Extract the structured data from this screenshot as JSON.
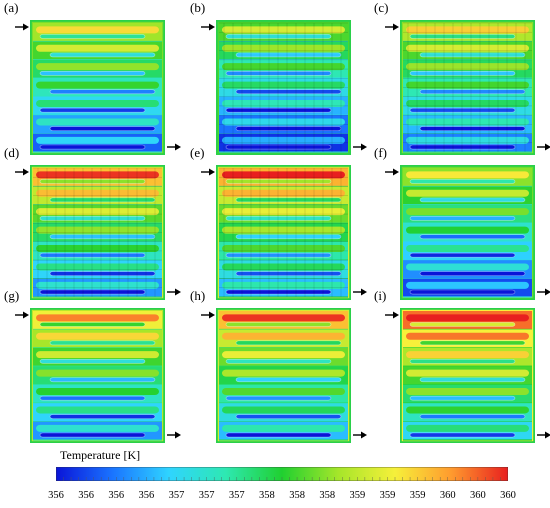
{
  "panels": [
    {
      "label": "(a)",
      "variant": "a"
    },
    {
      "label": "(b)",
      "variant": "b"
    },
    {
      "label": "(c)",
      "variant": "c"
    },
    {
      "label": "(d)",
      "variant": "d"
    },
    {
      "label": "(e)",
      "variant": "e"
    },
    {
      "label": "(f)",
      "variant": "f"
    },
    {
      "label": "(g)",
      "variant": "g"
    },
    {
      "label": "(h)",
      "variant": "h"
    },
    {
      "label": "(i)",
      "variant": "i"
    }
  ],
  "colorbar": {
    "title": "Temperature [K]",
    "ticks": [
      "356",
      "356",
      "356",
      "356",
      "357",
      "357",
      "357",
      "358",
      "358",
      "358",
      "359",
      "359",
      "359",
      "360",
      "360",
      "360"
    ],
    "colors": [
      "#0a14d8",
      "#1a74ff",
      "#2fd4ff",
      "#2ee8b2",
      "#20d030",
      "#a6e62a",
      "#f6f03a",
      "#ff9a2e",
      "#e81f1f"
    ]
  }
}
